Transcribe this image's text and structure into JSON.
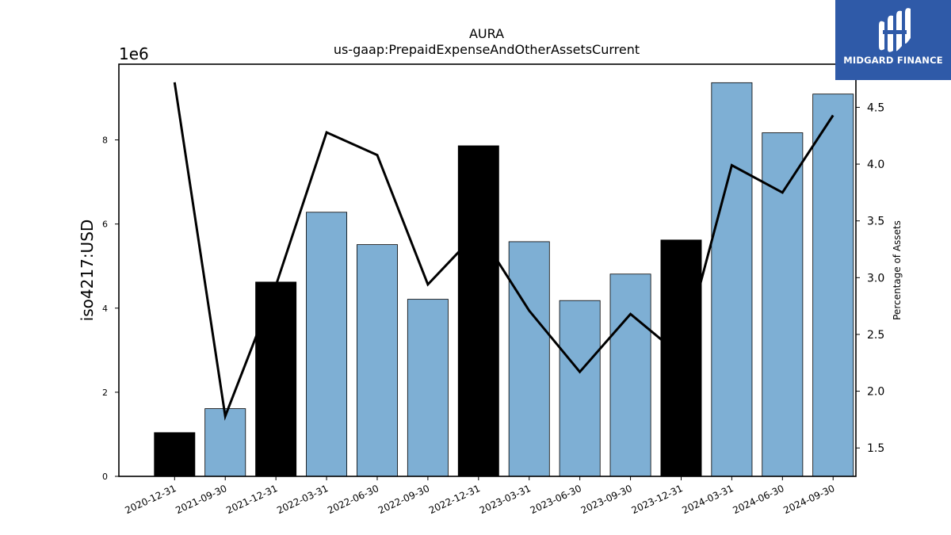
{
  "brand": {
    "name": "MIDGARD FINANCE",
    "color": "#2f5aa8"
  },
  "chart_data": {
    "type": "bar",
    "title": "AURA",
    "subtitle": "us-gaap:PrepaidExpenseAndOtherAssetsCurrent",
    "ylabel": "iso4217:USD",
    "y_offset_label": "1e6",
    "y2label": "Percentage of Assets",
    "categories": [
      "2020-12-31",
      "2021-09-30",
      "2021-12-31",
      "2022-03-31",
      "2022-06-30",
      "2022-09-30",
      "2022-12-31",
      "2023-03-31",
      "2023-06-30",
      "2023-09-30",
      "2023-12-31",
      "2024-03-31",
      "2024-06-30",
      "2024-09-30"
    ],
    "values": [
      1.04,
      1.61,
      4.62,
      6.28,
      5.51,
      4.21,
      7.86,
      5.58,
      4.18,
      4.81,
      5.62,
      9.36,
      8.17,
      9.09
    ],
    "bar_colors": [
      "#000000",
      "#7eafd4",
      "#000000",
      "#7eafd4",
      "#7eafd4",
      "#7eafd4",
      "#000000",
      "#7eafd4",
      "#7eafd4",
      "#7eafd4",
      "#000000",
      "#7eafd4",
      "#7eafd4",
      "#7eafd4"
    ],
    "ylim": [
      0,
      9.8
    ],
    "yticks": [
      0,
      2,
      4,
      6,
      8
    ],
    "line_series": {
      "values": [
        4.72,
        1.78,
        2.93,
        4.28,
        4.08,
        2.94,
        3.41,
        2.71,
        2.17,
        2.68,
        2.31,
        3.99,
        3.75,
        4.43
      ]
    },
    "y2lim": [
      1.25,
      4.88
    ],
    "y2ticks": [
      1.5,
      2.0,
      2.5,
      3.0,
      3.5,
      4.0,
      4.5
    ]
  }
}
